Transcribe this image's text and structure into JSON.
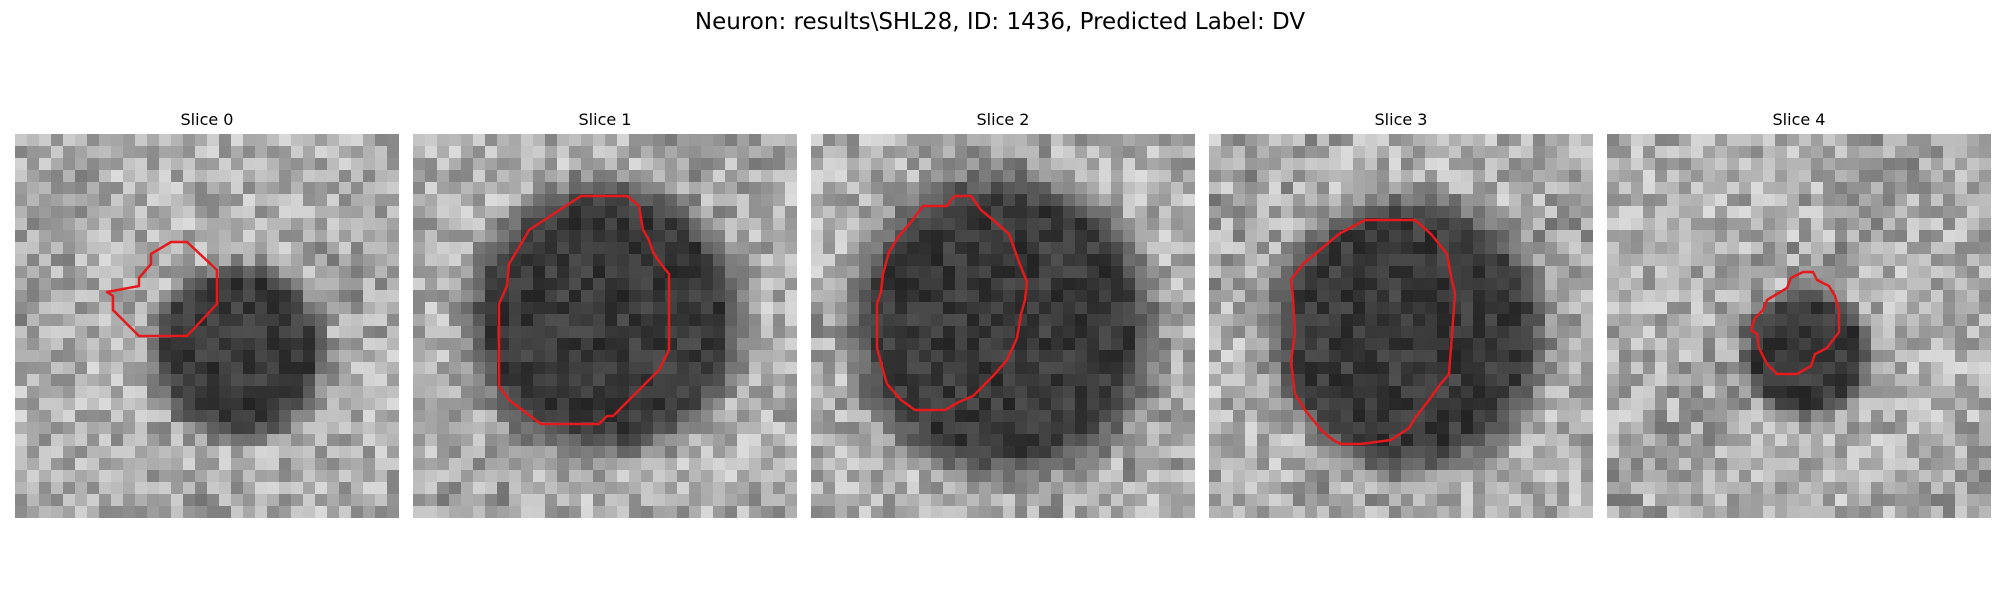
{
  "figure": {
    "title": "Neuron: results\\SHL28, ID: 1436, Predicted Label: DV"
  },
  "panels": [
    {
      "title": "Slice 0",
      "contour_color": "#e41a1c",
      "dark_center": [
        0.58,
        0.57
      ],
      "dark_radius": 0.19
    },
    {
      "title": "Slice 1",
      "contour_color": "#e41a1c",
      "dark_center": [
        0.5,
        0.48
      ],
      "dark_radius": 0.3
    },
    {
      "title": "Slice 2",
      "contour_color": "#e41a1c",
      "dark_center": [
        0.5,
        0.5
      ],
      "dark_radius": 0.33
    },
    {
      "title": "Slice 3",
      "contour_color": "#e41a1c",
      "dark_center": [
        0.52,
        0.52
      ],
      "dark_radius": 0.3
    },
    {
      "title": "Slice 4",
      "contour_color": "#e41a1c",
      "dark_center": [
        0.52,
        0.57
      ],
      "dark_radius": 0.14
    }
  ]
}
